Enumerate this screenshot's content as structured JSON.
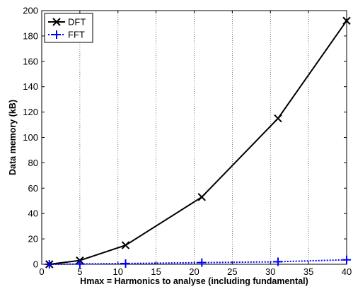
{
  "chart_data": {
    "type": "line",
    "xlabel": "Hmax = Harmonics to analyse (including fundamental)",
    "ylabel": "Data memory (kB)",
    "xlim": [
      0,
      40
    ],
    "ylim": [
      0,
      200
    ],
    "x_ticks": [
      0,
      5,
      10,
      15,
      20,
      25,
      30,
      35,
      40
    ],
    "y_ticks": [
      0,
      20,
      40,
      60,
      80,
      100,
      120,
      140,
      160,
      180,
      200
    ],
    "grid": "vertical-dotted",
    "legend_position": "top-left",
    "series": [
      {
        "name": "DFT",
        "color": "#000000",
        "marker": "x",
        "line_style": "solid",
        "x": [
          1,
          5,
          11,
          21,
          31,
          40
        ],
        "y": [
          0,
          3,
          15,
          53,
          115,
          192
        ]
      },
      {
        "name": "FFT",
        "color": "#0000ff",
        "marker": "+",
        "line_style": "dotted",
        "x": [
          1,
          5,
          11,
          21,
          31,
          40
        ],
        "y": [
          0,
          0.2,
          0.6,
          1.3,
          2,
          3.5
        ]
      }
    ]
  }
}
